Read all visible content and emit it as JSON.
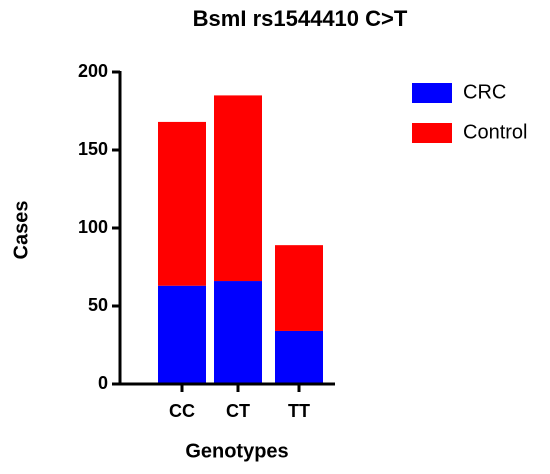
{
  "chart_data": {
    "type": "stacked-bar",
    "title": "BsmI rs1544410 C>T",
    "x_label": "Genotypes",
    "y_label": "Cases",
    "categories": [
      "CC",
      "CT",
      "TT"
    ],
    "series": [
      {
        "name": "CRC",
        "color": "#0000ff",
        "values": [
          63,
          66,
          34
        ]
      },
      {
        "name": "Control",
        "color": "#ff0000",
        "values": [
          105,
          119,
          55
        ]
      }
    ],
    "ylim": [
      0,
      200
    ],
    "yticks": [
      0,
      50,
      100,
      150,
      200
    ],
    "legend": "right"
  }
}
